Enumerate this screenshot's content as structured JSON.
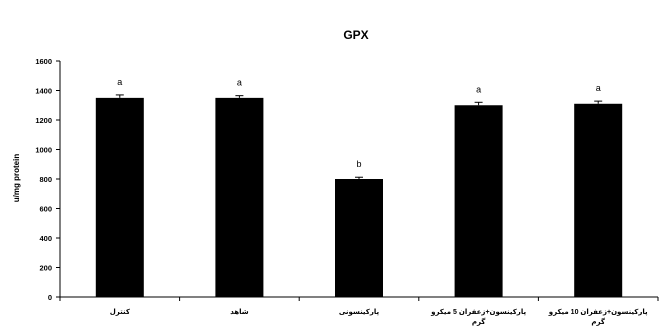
{
  "chart_data": {
    "type": "bar",
    "title": "GPX",
    "xlabel": "",
    "ylabel": "u/mg protein",
    "ylim": [
      0,
      1600
    ],
    "yticks": [
      0,
      200,
      400,
      600,
      800,
      1000,
      1200,
      1400,
      1600
    ],
    "grid": false,
    "legend": "none",
    "bar_color": "#000000",
    "categories": [
      "کنترل",
      "شاهد",
      "پارکینسونی",
      "پارکینسون+زعفران 5 میکرو گرم",
      "پارکینسون+زعفران 10 میکرو گرم"
    ],
    "values": [
      1350,
      1350,
      800,
      1300,
      1310
    ],
    "errors": [
      20,
      15,
      12,
      20,
      18
    ],
    "annotations": [
      "a",
      "a",
      "b",
      "a",
      "a"
    ]
  }
}
